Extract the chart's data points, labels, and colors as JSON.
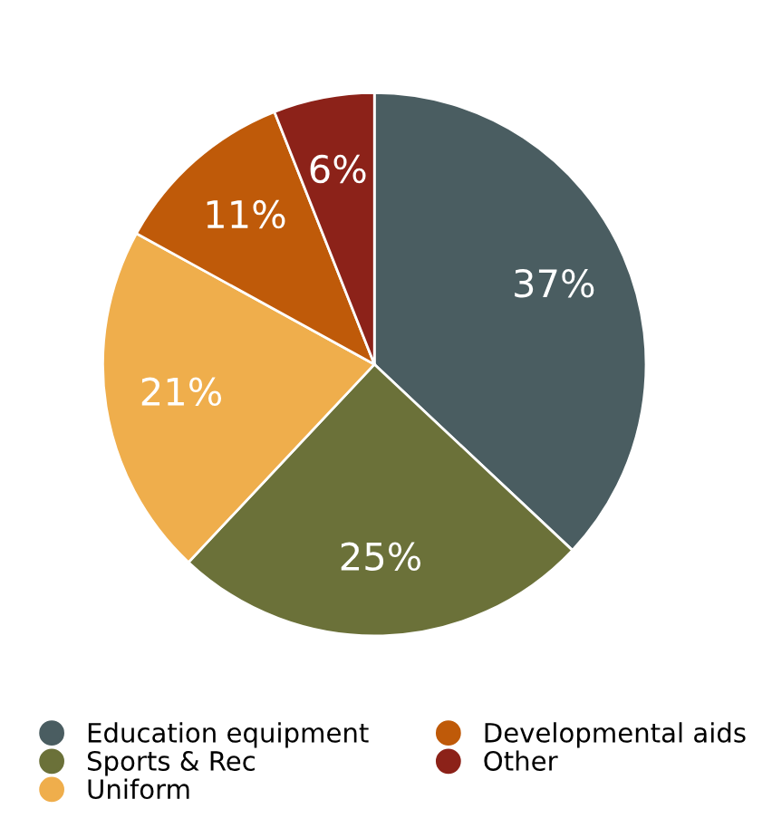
{
  "chart_data": {
    "type": "pie",
    "categories": [
      "Education equipment",
      "Sports & Rec",
      "Uniform",
      "Developmental aids",
      "Other"
    ],
    "values": [
      37,
      25,
      21,
      11,
      6
    ],
    "colors": [
      "#4a5d61",
      "#6b7139",
      "#efae4c",
      "#bf5a09",
      "#8c2219"
    ],
    "value_labels": [
      "37%",
      "25%",
      "21%",
      "11%",
      "6%"
    ],
    "legend": "bottom"
  }
}
